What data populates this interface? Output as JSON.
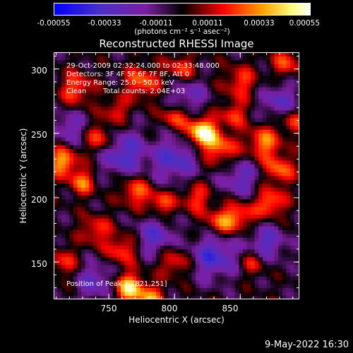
{
  "colorbar": {
    "ticks": [
      "-0.00055",
      "-0.00033",
      "-0.00011",
      "0.00011",
      "0.00033",
      "0.00055"
    ],
    "unit": "(photons cm⁻² s⁻¹ asec⁻²)"
  },
  "chart_data": {
    "type": "heatmap",
    "title": "Reconstructed RHESSI Image",
    "xlabel": "Heliocentric X (arcsec)",
    "ylabel": "Heliocentric Y (arcsec)",
    "xlim": [
      708,
      895
    ],
    "ylim": [
      121,
      313
    ],
    "xticks": [
      "750",
      "800",
      "850"
    ],
    "yticks": [
      "150",
      "200",
      "250",
      "300"
    ],
    "zlim": [
      -0.00055,
      0.00055
    ],
    "colormap": [
      "#0000ff",
      "#4b2fc8",
      "#7c1ea0",
      "#000000",
      "#ff0000",
      "#ffa500",
      "#ffff80",
      "#ffffff"
    ],
    "peak": [
      821,
      251
    ],
    "annotations": {
      "time": "29-Oct-2009 02:32:24.000 to 02:33:48.000",
      "detectors": "Detectors: 3F 4F 5F 6F 7F 8F, Att 0",
      "energy": "Energy Range: 25.0 - 50.0 keV",
      "method": "Clean",
      "counts": "Total counts: 2.04E+03",
      "peak_text": "Position of Peak = [821,251]"
    }
  },
  "footer": {
    "date": "9-May-2022 16:30"
  }
}
